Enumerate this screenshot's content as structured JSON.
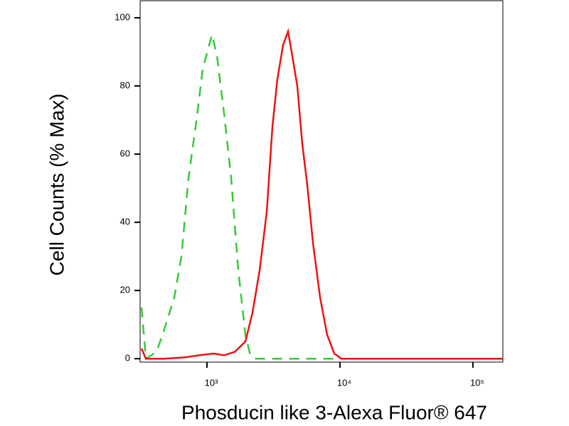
{
  "chart_data": {
    "type": "line",
    "xlabel": "Phosducin like 3-Alexa Fluor® 647",
    "ylabel": "Cell Counts (% Max)",
    "xscale": "log",
    "xlim": [
      314,
      168000
    ],
    "ylim": [
      -1,
      105
    ],
    "xticks": [
      {
        "value": 1000,
        "label": "10³"
      },
      {
        "value": 10000,
        "label": "10⁴"
      },
      {
        "value": 100000,
        "label": "10⁵"
      }
    ],
    "yticks": [
      0,
      20,
      40,
      60,
      80,
      100
    ],
    "series": [
      {
        "color": "#33cc33",
        "dash": true,
        "x": [
          322,
          347,
          417,
          472,
          568,
          642,
          726,
          821,
          929,
          1090,
          1188,
          1344,
          1520,
          1719,
          1945,
          2119,
          2338,
          3826,
          13120,
          167900
        ],
        "values": [
          15,
          0,
          2,
          8,
          18,
          30,
          53,
          68,
          85,
          95,
          89,
          72,
          53,
          26,
          7,
          1,
          0,
          0,
          0,
          0
        ]
      },
      {
        "color": "#ee1111",
        "dash": false,
        "x": [
          322,
          347,
          472,
          682,
          873,
          1117,
          1344,
          1617,
          1945,
          2198,
          2489,
          2814,
          3105,
          3384,
          3733,
          4070,
          4328,
          4778,
          5208,
          5679,
          6266,
          7087,
          8017,
          9063,
          10250,
          167900
        ],
        "values": [
          3,
          0,
          0,
          0.4,
          1,
          1.5,
          1,
          2,
          5,
          13.5,
          26,
          43,
          68,
          82,
          92,
          96,
          90,
          80,
          63,
          51,
          34,
          18,
          7,
          1.5,
          0,
          0
        ]
      }
    ]
  }
}
